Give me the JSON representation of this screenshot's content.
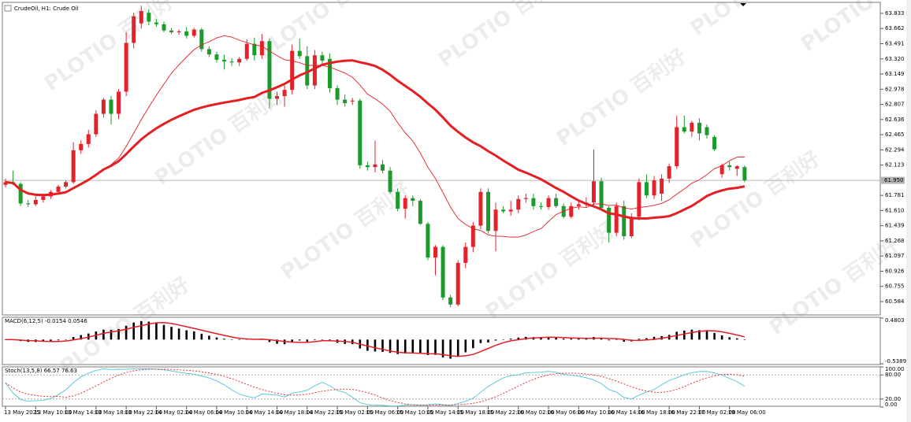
{
  "title": "CrudeOil, H1:  Crude Oil",
  "watermark": "PLOTIO 百利好",
  "chart_data": [
    {
      "type": "candlestick",
      "up_color": "#e4222a",
      "down_color": "#1d9a2c",
      "ma_color": "#e41f24",
      "ylim": [
        60.433,
        63.957
      ],
      "yticks": [
        63.833,
        63.662,
        63.491,
        {
          "value": 63.32,
          "label": "63.320"
        },
        63.149,
        62.978,
        62.807,
        62.636,
        62.465,
        62.294,
        62.123,
        61.781,
        {
          "value": 61.61,
          "label": "61.610"
        },
        61.439,
        61.268,
        61.097,
        60.926,
        60.755,
        60.584
      ],
      "last_price": {
        "value": 61.95,
        "label": "61.950"
      },
      "categories": [
        "13 May 2025",
        null,
        null,
        null,
        "13 May 10:00",
        null,
        null,
        null,
        "13 May 14:00",
        null,
        null,
        null,
        "13 May 18:00",
        null,
        null,
        null,
        "13 May 22:00",
        null,
        null,
        null,
        "14 May 02:00",
        null,
        null,
        null,
        "14 May 06:00",
        null,
        null,
        null,
        "14 May 10:00",
        null,
        null,
        null,
        "14 May 14:00",
        null,
        null,
        null,
        "14 May 18:00",
        null,
        null,
        null,
        "14 May 22:00",
        null,
        null,
        null,
        "15 May 02:00",
        null,
        null,
        null,
        "15 May 06:00",
        null,
        null,
        null,
        "15 May 10:00",
        null,
        null,
        null,
        "15 May 14:00",
        null,
        null,
        null,
        "15 May 18:00",
        null,
        null,
        null,
        "15 May 22:00",
        null,
        null,
        null,
        "16 May 02:00",
        null,
        null,
        null,
        "16 May 06:00",
        null,
        null,
        null,
        "16 May 10:00",
        null,
        null,
        null,
        "16 May 14:00",
        null,
        null,
        null,
        "16 May 18:00",
        null,
        null,
        null,
        "16 May 22:00",
        null,
        null,
        null,
        "17 May 02:00",
        null,
        null,
        null,
        "19 May 06:00",
        null,
        null
      ],
      "ohlc": [
        [
          61.9,
          61.97,
          61.87,
          61.93
        ],
        [
          61.93,
          62.06,
          61.9,
          61.91
        ],
        [
          61.91,
          61.93,
          61.66,
          61.69
        ],
        [
          61.69,
          61.73,
          61.65,
          61.68
        ],
        [
          61.68,
          61.77,
          61.66,
          61.73
        ],
        [
          61.73,
          61.8,
          61.7,
          61.77
        ],
        [
          61.77,
          61.84,
          61.74,
          61.82
        ],
        [
          61.82,
          61.9,
          61.8,
          61.88
        ],
        [
          61.88,
          61.95,
          61.86,
          61.93
        ],
        [
          61.93,
          62.38,
          61.91,
          62.29
        ],
        [
          62.29,
          62.4,
          62.25,
          62.36
        ],
        [
          62.36,
          62.52,
          62.32,
          62.47
        ],
        [
          62.47,
          62.74,
          62.44,
          62.7
        ],
        [
          62.7,
          62.88,
          62.66,
          62.86
        ],
        [
          62.86,
          62.9,
          62.58,
          62.7
        ],
        [
          62.7,
          62.98,
          62.64,
          62.95
        ],
        [
          62.95,
          63.62,
          62.9,
          63.5
        ],
        [
          63.5,
          63.84,
          63.44,
          63.8
        ],
        [
          63.72,
          63.92,
          63.66,
          63.86
        ],
        [
          63.84,
          63.88,
          63.7,
          63.74
        ],
        [
          63.73,
          63.77,
          63.68,
          63.71
        ],
        [
          63.71,
          63.74,
          63.62,
          63.64
        ],
        [
          63.64,
          63.67,
          63.6,
          63.62
        ],
        [
          63.62,
          63.65,
          63.59,
          63.63
        ],
        [
          63.63,
          63.68,
          63.55,
          63.58
        ],
        [
          63.58,
          63.67,
          63.56,
          63.65
        ],
        [
          63.65,
          63.67,
          63.4,
          63.43
        ],
        [
          63.43,
          63.46,
          63.34,
          63.37
        ],
        [
          63.37,
          63.4,
          63.28,
          63.31
        ],
        [
          63.31,
          63.37,
          63.2,
          63.29
        ],
        [
          63.29,
          63.33,
          63.24,
          63.28
        ],
        [
          63.28,
          63.34,
          63.24,
          63.32
        ],
        [
          63.32,
          63.54,
          63.3,
          63.49
        ],
        [
          63.49,
          63.56,
          63.3,
          63.36
        ],
        [
          63.36,
          63.6,
          63.32,
          63.52
        ],
        [
          63.52,
          63.55,
          62.76,
          62.87
        ],
        [
          62.87,
          62.95,
          62.8,
          62.9
        ],
        [
          62.9,
          63.02,
          62.78,
          62.97
        ],
        [
          62.97,
          63.48,
          62.92,
          63.41
        ],
        [
          63.41,
          63.55,
          63.32,
          63.35
        ],
        [
          63.35,
          63.46,
          62.98,
          63.02
        ],
        [
          63.02,
          63.42,
          62.98,
          63.36
        ],
        [
          63.36,
          63.4,
          63.26,
          63.3
        ],
        [
          63.32,
          63.38,
          62.94,
          62.99
        ],
        [
          62.99,
          63.02,
          62.8,
          62.86
        ],
        [
          62.86,
          62.92,
          62.78,
          62.82
        ],
        [
          62.84,
          62.88,
          62.8,
          62.85
        ],
        [
          62.85,
          62.87,
          62.08,
          62.12
        ],
        [
          62.12,
          62.16,
          62.06,
          62.1
        ],
        [
          62.1,
          62.4,
          62.04,
          62.13
        ],
        [
          62.13,
          62.18,
          62.03,
          62.06
        ],
        [
          62.06,
          62.1,
          61.8,
          61.82
        ],
        [
          61.82,
          61.86,
          61.6,
          61.63
        ],
        [
          61.63,
          61.78,
          61.52,
          61.75
        ],
        [
          61.75,
          61.78,
          61.66,
          61.72
        ],
        [
          61.72,
          61.74,
          61.45,
          61.46
        ],
        [
          61.46,
          61.48,
          61.05,
          61.08
        ],
        [
          61.08,
          61.22,
          60.88,
          61.2
        ],
        [
          61.2,
          61.22,
          60.6,
          60.63
        ],
        [
          60.63,
          60.66,
          60.52,
          60.55
        ],
        [
          60.55,
          61.05,
          60.53,
          61.02
        ],
        [
          61.02,
          61.25,
          60.96,
          61.2
        ],
        [
          61.2,
          61.48,
          61.14,
          61.44
        ],
        [
          61.44,
          61.86,
          61.4,
          61.82
        ],
        [
          61.82,
          61.86,
          61.35,
          61.38
        ],
        [
          61.38,
          61.7,
          61.15,
          61.62
        ],
        [
          61.62,
          61.66,
          61.58,
          61.6
        ],
        [
          61.6,
          61.72,
          61.55,
          61.62
        ],
        [
          61.62,
          61.78,
          61.58,
          61.74
        ],
        [
          61.74,
          61.8,
          61.7,
          61.75
        ],
        [
          61.75,
          61.8,
          61.62,
          61.66
        ],
        [
          61.66,
          61.7,
          61.62,
          61.65
        ],
        [
          61.65,
          61.78,
          61.62,
          61.75
        ],
        [
          61.75,
          61.8,
          61.64,
          61.66
        ],
        [
          61.66,
          61.69,
          61.52,
          61.54
        ],
        [
          61.54,
          61.7,
          61.52,
          61.66
        ],
        [
          61.66,
          61.72,
          61.62,
          61.68
        ],
        [
          61.68,
          61.76,
          61.64,
          61.7
        ],
        [
          61.7,
          62.3,
          61.66,
          61.94
        ],
        [
          61.94,
          61.98,
          61.62,
          61.64
        ],
        [
          61.64,
          61.66,
          61.25,
          61.36
        ],
        [
          61.36,
          61.7,
          61.32,
          61.66
        ],
        [
          61.66,
          61.72,
          61.28,
          61.32
        ],
        [
          61.32,
          61.58,
          61.3,
          61.54
        ],
        [
          61.54,
          61.97,
          61.5,
          61.93
        ],
        [
          61.93,
          62.02,
          61.75,
          61.78
        ],
        [
          61.78,
          62.0,
          61.74,
          61.95
        ],
        [
          61.8,
          62.02,
          61.72,
          61.97
        ],
        [
          61.97,
          62.14,
          61.92,
          62.11
        ],
        [
          62.11,
          62.68,
          62.08,
          62.55
        ],
        [
          62.55,
          62.68,
          62.48,
          62.5
        ],
        [
          62.5,
          62.62,
          62.44,
          62.6
        ],
        [
          62.6,
          62.65,
          62.4,
          62.48
        ],
        [
          62.55,
          62.58,
          62.42,
          62.46
        ],
        [
          62.44,
          62.46,
          62.28,
          62.3
        ],
        [
          62.02,
          62.14,
          61.98,
          62.12
        ],
        [
          62.12,
          62.16,
          62.06,
          62.1
        ],
        [
          62.08,
          62.12,
          62.0,
          62.11
        ],
        [
          62.1,
          62.12,
          61.93,
          61.95
        ]
      ]
    },
    {
      "type": "macd",
      "label": "MACD(6,12,5) -0.0154 0.0546",
      "params": [
        6,
        12,
        5
      ],
      "bar_color": "#000000",
      "signal_color": "#e41f24",
      "ylim": [
        -0.5389,
        0.4803
      ],
      "yticks": [
        0.4803,
        -0.5389
      ]
    },
    {
      "type": "stochastic",
      "label": "Stoch(13,5,8) 66.57 76.63",
      "params": [
        13,
        5,
        8
      ],
      "main_color": "#4fc3d6",
      "signal_color": "#e41f24",
      "ylim": [
        0,
        100
      ],
      "yticks": [
        {
          "value": 100,
          "label": "100.00"
        },
        {
          "value": 80,
          "label": "80.00"
        },
        {
          "value": 20,
          "label": "20.00"
        },
        {
          "value": 0,
          "label": "0.00"
        }
      ],
      "levels": [
        80,
        20
      ]
    }
  ]
}
